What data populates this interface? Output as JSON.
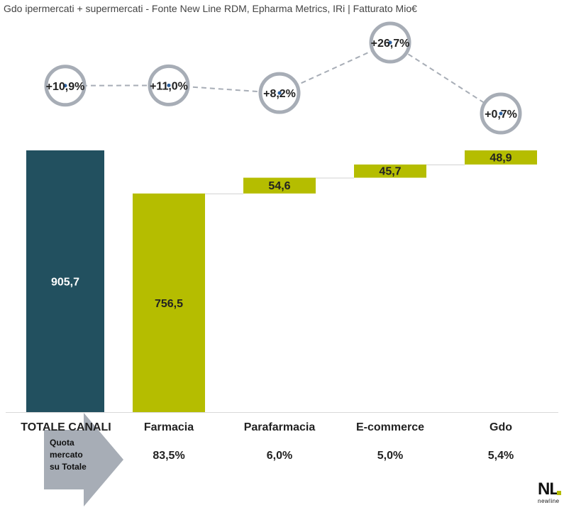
{
  "subtitle": "Gdo ipermercati + supermercati - Fonte New Line RDM, Epharma Metrics, IRi | Fatturato Mio€",
  "colors": {
    "total_bar": "#22505f",
    "channel_bar": "#b5bd00",
    "circle": "#a7adb6",
    "dash": "#a7adb6",
    "arrow": "#a7adb6"
  },
  "chart_data": {
    "type": "bar",
    "style": "waterfall",
    "categories": [
      "TOTALE CANALI",
      "Farmacia",
      "Parafarmacia",
      "E-commerce",
      "Gdo"
    ],
    "values": [
      905.7,
      756.5,
      54.6,
      45.7,
      48.9
    ],
    "value_labels": [
      "905,7",
      "756,5",
      "54,6",
      "45,7",
      "48,9"
    ],
    "growth_labels": [
      "+10,9%",
      "+11,0%",
      "+8,2%",
      "+26,7%",
      "+0,7%"
    ],
    "growth_values": [
      10.9,
      11.0,
      8.2,
      26.7,
      0.7
    ],
    "market_share_labels": [
      "83,5%",
      "6,0%",
      "5,0%",
      "5,4%"
    ],
    "ylim": [
      0,
      905.7
    ]
  },
  "arrow_label_lines": [
    "Quota",
    "mercato",
    "su Totale"
  ],
  "logo": {
    "main": "NL",
    "sub": "newline"
  }
}
